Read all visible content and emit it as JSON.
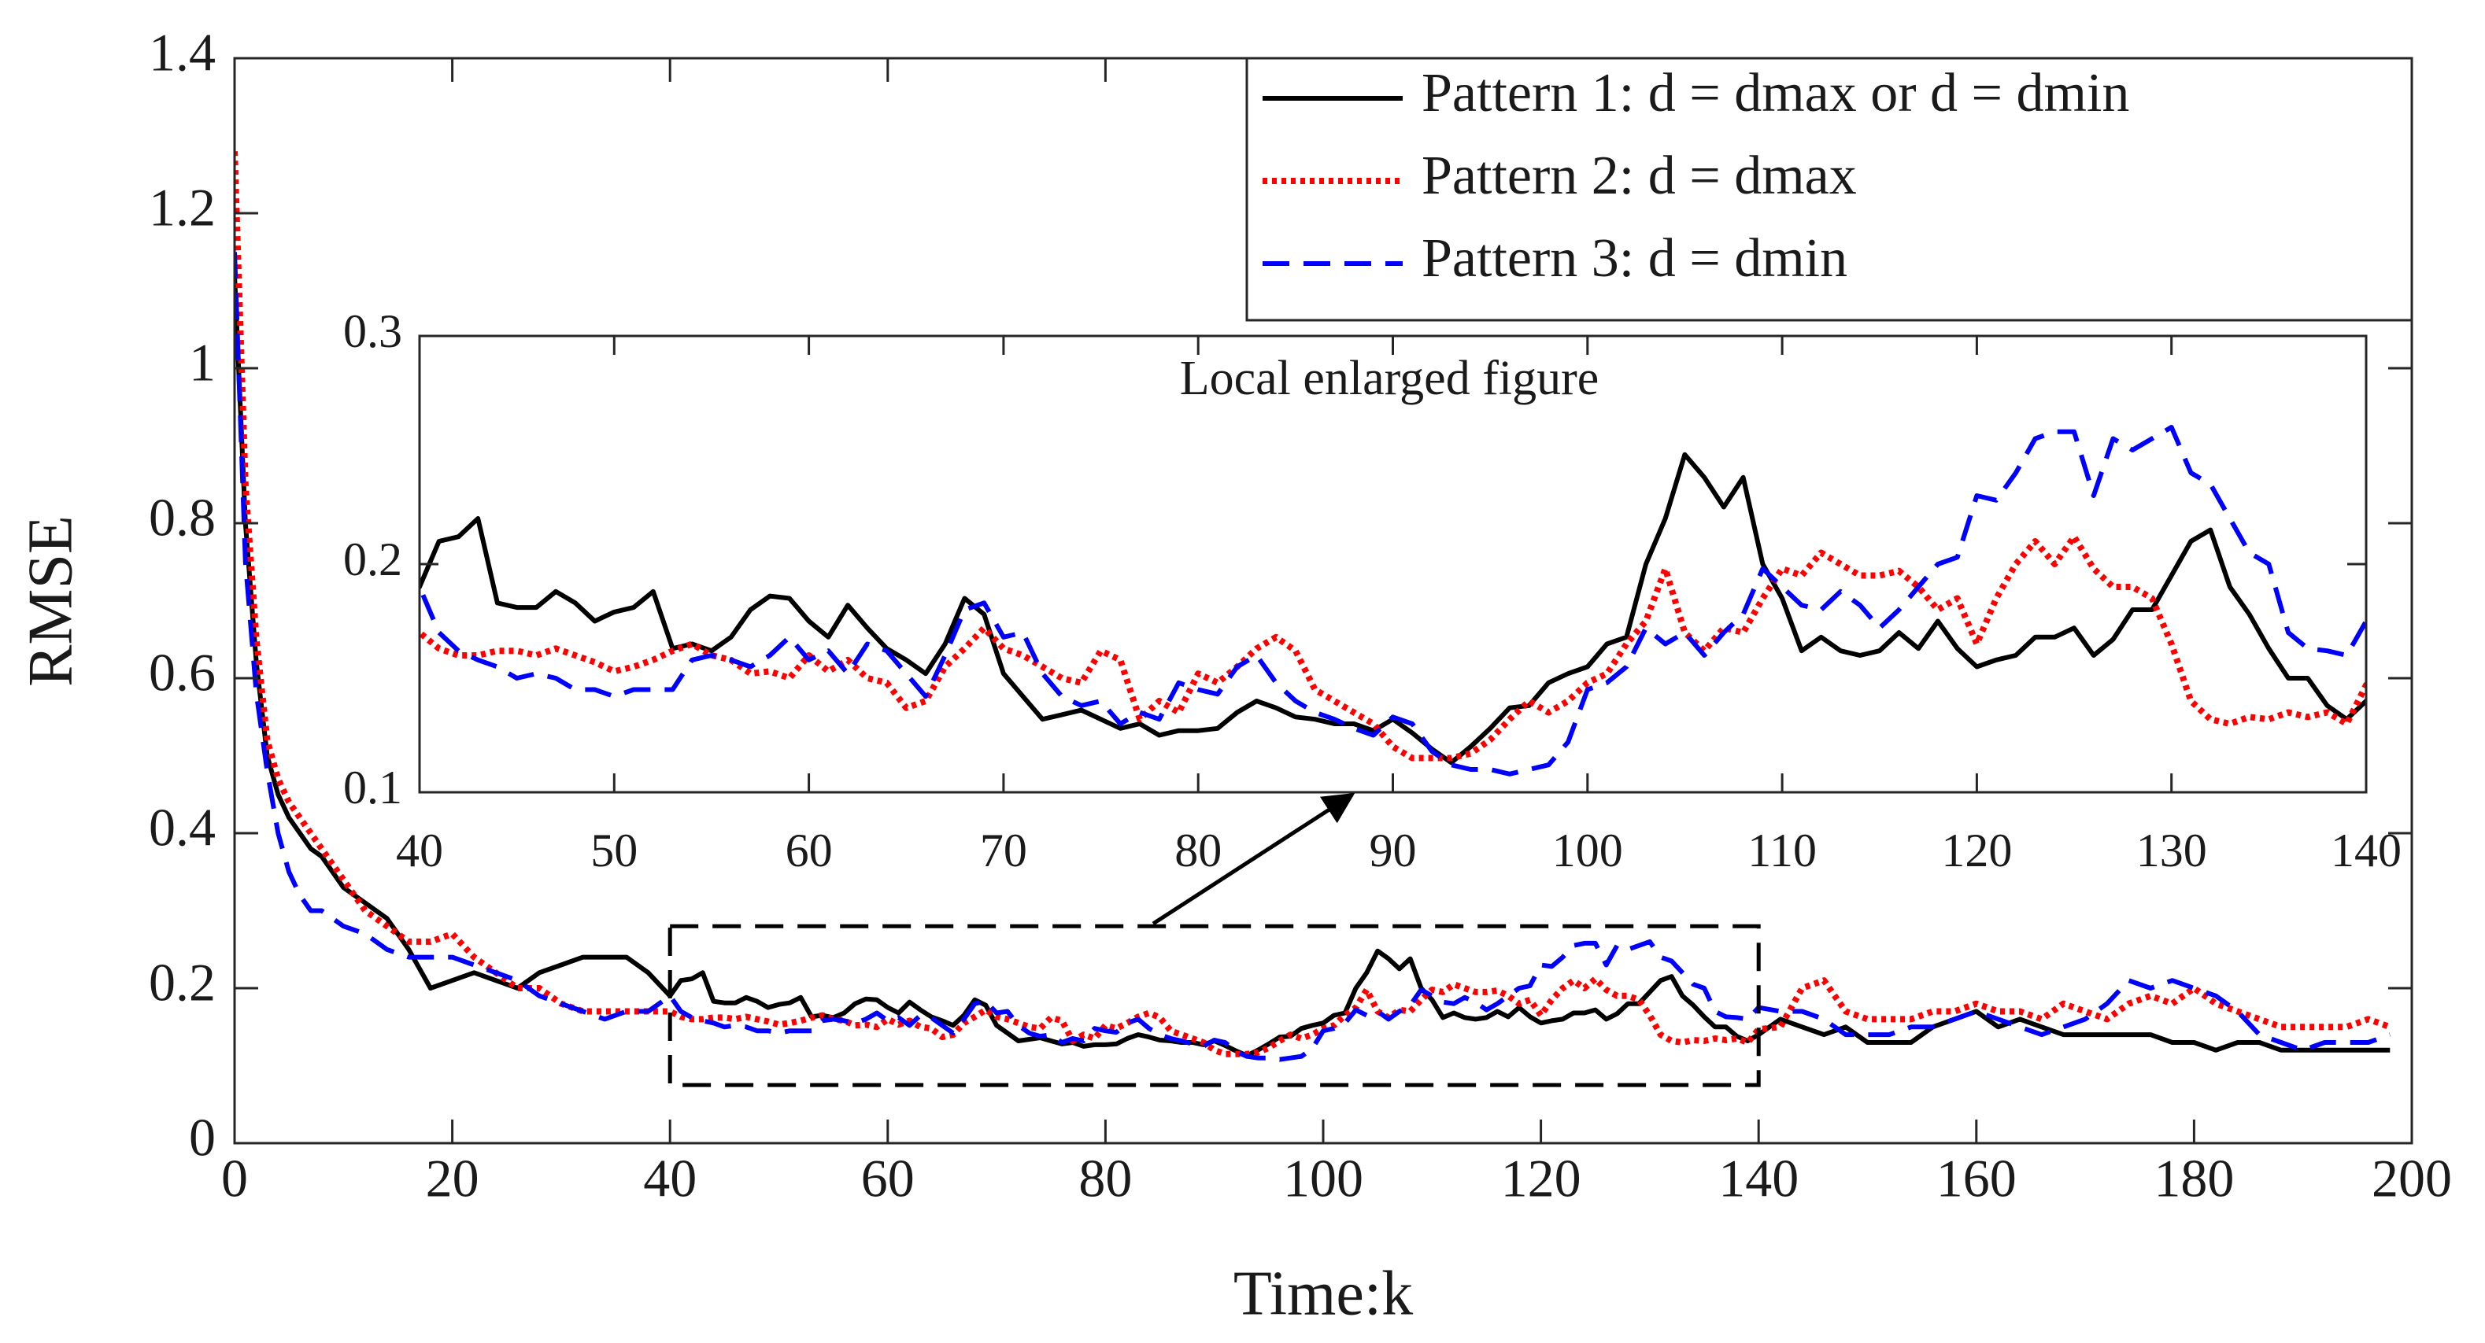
{
  "chart_data": {
    "type": "line",
    "xlabel": "Time:k",
    "ylabel": "RMSE",
    "xlim": [
      0,
      200
    ],
    "ylim": [
      0,
      1.4
    ],
    "xticks": [
      0,
      20,
      40,
      60,
      80,
      100,
      120,
      140,
      160,
      180,
      200
    ],
    "yticks": [
      0,
      0.2,
      0.4,
      0.6,
      0.8,
      1,
      1.2,
      1.4
    ],
    "legend": "upper right",
    "x": [
      0,
      1,
      2,
      3,
      4,
      5,
      6,
      7,
      8,
      9,
      10,
      12,
      14,
      16,
      18,
      20,
      22,
      24,
      26,
      28,
      30,
      32,
      34,
      36,
      38,
      40,
      41,
      42,
      43,
      44,
      45,
      46,
      47,
      48,
      49,
      50,
      51,
      52,
      53,
      54,
      55,
      56,
      57,
      58,
      59,
      60,
      61,
      62,
      63,
      64,
      65,
      66,
      67,
      68,
      69,
      70,
      71,
      72,
      73,
      74,
      75,
      76,
      77,
      78,
      79,
      80,
      81,
      82,
      83,
      84,
      85,
      86,
      87,
      88,
      89,
      90,
      91,
      92,
      93,
      94,
      95,
      96,
      97,
      98,
      99,
      100,
      101,
      102,
      103,
      104,
      105,
      106,
      107,
      108,
      109,
      110,
      111,
      112,
      113,
      114,
      115,
      116,
      117,
      118,
      119,
      120,
      121,
      122,
      123,
      124,
      125,
      126,
      127,
      128,
      129,
      130,
      131,
      132,
      133,
      134,
      135,
      136,
      137,
      138,
      139,
      140,
      142,
      144,
      146,
      148,
      150,
      152,
      154,
      156,
      158,
      160,
      162,
      164,
      166,
      168,
      170,
      172,
      174,
      176,
      178,
      180,
      182,
      184,
      186,
      188,
      190,
      192,
      194,
      196,
      198
    ],
    "series": [
      {
        "name": "Pattern 1: d = dmax or d = dmin",
        "color": "#000000",
        "style": "solid",
        "values": [
          1.12,
          0.8,
          0.62,
          0.5,
          0.45,
          0.42,
          0.4,
          0.38,
          0.37,
          0.35,
          0.33,
          0.31,
          0.29,
          0.25,
          0.2,
          0.21,
          0.22,
          0.21,
          0.2,
          0.22,
          0.23,
          0.24,
          0.24,
          0.24,
          0.22,
          0.19,
          0.21,
          0.212,
          0.22,
          0.183,
          0.181,
          0.181,
          0.188,
          0.183,
          0.175,
          0.179,
          0.181,
          0.188,
          0.163,
          0.165,
          0.162,
          0.168,
          0.18,
          0.186,
          0.185,
          0.175,
          0.168,
          0.182,
          0.172,
          0.163,
          0.158,
          0.152,
          0.165,
          0.185,
          0.178,
          0.152,
          0.142,
          0.132,
          0.134,
          0.136,
          0.132,
          0.128,
          0.13,
          0.125,
          0.127,
          0.127,
          0.128,
          0.135,
          0.14,
          0.137,
          0.133,
          0.132,
          0.13,
          0.13,
          0.127,
          0.132,
          0.126,
          0.119,
          0.113,
          0.12,
          0.128,
          0.137,
          0.138,
          0.148,
          0.152,
          0.155,
          0.165,
          0.168,
          0.2,
          0.22,
          0.248,
          0.238,
          0.225,
          0.238,
          0.2,
          0.185,
          0.162,
          0.168,
          0.162,
          0.16,
          0.162,
          0.17,
          0.163,
          0.175,
          0.163,
          0.155,
          0.158,
          0.16,
          0.168,
          0.168,
          0.172,
          0.16,
          0.167,
          0.18,
          0.18,
          0.195,
          0.21,
          0.215,
          0.19,
          0.178,
          0.163,
          0.15,
          0.15,
          0.138,
          0.132,
          0.14,
          0.16,
          0.15,
          0.14,
          0.15,
          0.13,
          0.13,
          0.13,
          0.15,
          0.16,
          0.17,
          0.15,
          0.16,
          0.15,
          0.14,
          0.14,
          0.14,
          0.14,
          0.14,
          0.13,
          0.13,
          0.12,
          0.13,
          0.13,
          0.12,
          0.12,
          0.12,
          0.12,
          0.12,
          0.12
        ]
      },
      {
        "name": "Pattern 2: d = dmax",
        "color": "#ff0000",
        "style": "dotted",
        "values": [
          1.28,
          0.85,
          0.65,
          0.52,
          0.47,
          0.44,
          0.42,
          0.4,
          0.38,
          0.36,
          0.34,
          0.3,
          0.28,
          0.26,
          0.26,
          0.27,
          0.24,
          0.22,
          0.2,
          0.2,
          0.18,
          0.17,
          0.17,
          0.17,
          0.17,
          0.17,
          0.163,
          0.16,
          0.16,
          0.162,
          0.162,
          0.16,
          0.163,
          0.16,
          0.157,
          0.153,
          0.155,
          0.158,
          0.162,
          0.165,
          0.16,
          0.158,
          0.152,
          0.153,
          0.15,
          0.16,
          0.153,
          0.158,
          0.15,
          0.148,
          0.137,
          0.14,
          0.155,
          0.163,
          0.172,
          0.163,
          0.16,
          0.155,
          0.15,
          0.148,
          0.162,
          0.158,
          0.132,
          0.14,
          0.135,
          0.152,
          0.148,
          0.155,
          0.163,
          0.168,
          0.162,
          0.145,
          0.14,
          0.135,
          0.13,
          0.12,
          0.115,
          0.115,
          0.115,
          0.117,
          0.123,
          0.132,
          0.14,
          0.135,
          0.14,
          0.148,
          0.152,
          0.165,
          0.175,
          0.198,
          0.17,
          0.162,
          0.172,
          0.17,
          0.185,
          0.198,
          0.195,
          0.205,
          0.2,
          0.195,
          0.195,
          0.197,
          0.19,
          0.18,
          0.185,
          0.165,
          0.185,
          0.2,
          0.21,
          0.2,
          0.212,
          0.198,
          0.19,
          0.19,
          0.185,
          0.165,
          0.14,
          0.132,
          0.13,
          0.133,
          0.132,
          0.135,
          0.133,
          0.135,
          0.13,
          0.147,
          0.15,
          0.2,
          0.21,
          0.17,
          0.16,
          0.16,
          0.16,
          0.17,
          0.17,
          0.18,
          0.17,
          0.17,
          0.16,
          0.18,
          0.17,
          0.16,
          0.18,
          0.19,
          0.18,
          0.2,
          0.18,
          0.17,
          0.16,
          0.15,
          0.15,
          0.15,
          0.15,
          0.16,
          0.15
        ]
      },
      {
        "name": "Pattern 3: d = dmin",
        "color": "#0000ff",
        "style": "dashed",
        "values": [
          1.15,
          0.75,
          0.58,
          0.48,
          0.4,
          0.35,
          0.32,
          0.3,
          0.3,
          0.29,
          0.28,
          0.27,
          0.25,
          0.24,
          0.24,
          0.24,
          0.23,
          0.22,
          0.21,
          0.19,
          0.18,
          0.17,
          0.16,
          0.17,
          0.17,
          0.19,
          0.17,
          0.162,
          0.158,
          0.155,
          0.15,
          0.152,
          0.15,
          0.145,
          0.145,
          0.142,
          0.145,
          0.145,
          0.145,
          0.158,
          0.16,
          0.158,
          0.155,
          0.16,
          0.168,
          0.158,
          0.162,
          0.152,
          0.165,
          0.162,
          0.152,
          0.142,
          0.16,
          0.18,
          0.183,
          0.168,
          0.17,
          0.152,
          0.142,
          0.138,
          0.14,
          0.13,
          0.135,
          0.132,
          0.148,
          0.145,
          0.143,
          0.155,
          0.16,
          0.148,
          0.14,
          0.135,
          0.132,
          0.128,
          0.125,
          0.133,
          0.13,
          0.118,
          0.112,
          0.11,
          0.11,
          0.108,
          0.11,
          0.112,
          0.122,
          0.145,
          0.148,
          0.155,
          0.172,
          0.165,
          0.17,
          0.16,
          0.17,
          0.178,
          0.198,
          0.19,
          0.182,
          0.18,
          0.188,
          0.182,
          0.172,
          0.18,
          0.19,
          0.2,
          0.203,
          0.23,
          0.228,
          0.24,
          0.255,
          0.258,
          0.258,
          0.23,
          0.255,
          0.25,
          0.255,
          0.26,
          0.24,
          0.235,
          0.22,
          0.205,
          0.2,
          0.17,
          0.163,
          0.162,
          0.16,
          0.175,
          0.17,
          0.17,
          0.16,
          0.14,
          0.14,
          0.14,
          0.15,
          0.15,
          0.16,
          0.17,
          0.16,
          0.15,
          0.14,
          0.15,
          0.16,
          0.18,
          0.21,
          0.2,
          0.21,
          0.2,
          0.19,
          0.17,
          0.14,
          0.13,
          0.12,
          0.13,
          0.13,
          0.13,
          0.14
        ]
      }
    ],
    "zoom_box_ylim": [
      0.075,
      0.28
    ],
    "inset": {
      "title": "Local enlarged figure",
      "xlim": [
        40,
        140
      ],
      "ylim": [
        0.1,
        0.3
      ],
      "xticks": [
        40,
        50,
        60,
        70,
        80,
        90,
        100,
        110,
        120,
        130,
        140
      ],
      "yticks": [
        0.1,
        0.2,
        0.3
      ]
    }
  }
}
